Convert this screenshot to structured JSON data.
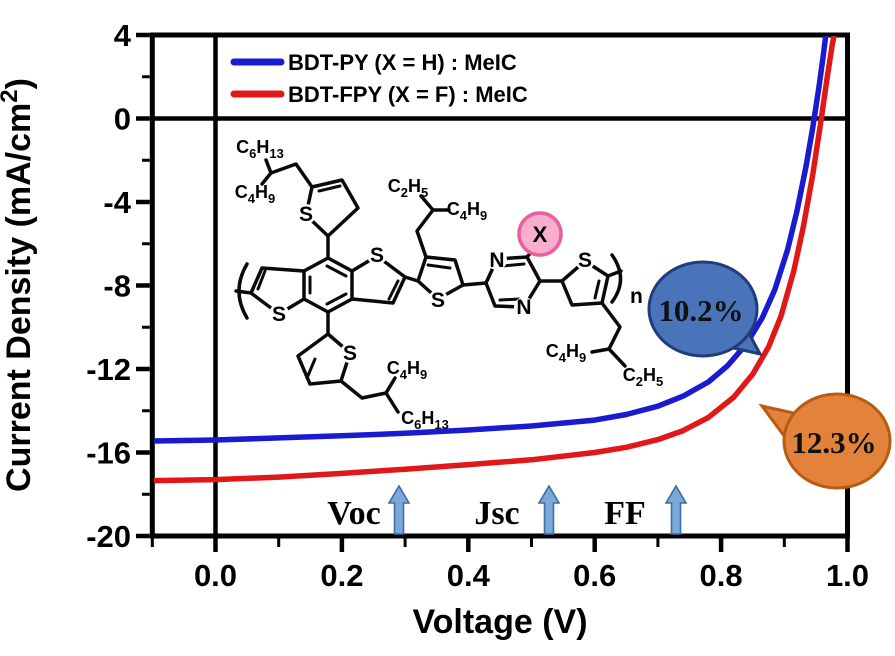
{
  "figure": {
    "xlabel": "Voltage (V)",
    "ylabel_main": "Current Density (mA/cm",
    "ylabel_sup": "2",
    "ylabel_end": ")"
  },
  "legend": {
    "items": [
      {
        "label": "BDT-PY (X = H) : MeIC",
        "color": "#1a1ad0"
      },
      {
        "label": "BDT-FPY (X = F) : MeIC",
        "color": "#e01818"
      }
    ]
  },
  "annotations": {
    "items": [
      {
        "label": "Voc"
      },
      {
        "label": "Jsc"
      },
      {
        "label": "FF"
      }
    ],
    "text_color": "#b00808",
    "arrow_fill": "#7aa8d8",
    "arrow_stroke": "#3f6ea6"
  },
  "callouts": [
    {
      "text": "10.2%",
      "fill": "#4a74ba",
      "stroke": "#1f3d7a"
    },
    {
      "text": "12.3%",
      "fill": "#e2823b",
      "stroke": "#b85c12"
    }
  ],
  "structure": {
    "labels": {
      "top_left_1": "C6H13",
      "top_left_2": "C4H9",
      "mid_top_1": "C2H5",
      "mid_top_2": "C4H9",
      "bottom_left_1": "C4H9",
      "bottom_left_2": "C6H13",
      "bottom_right_1": "C4H9",
      "bottom_right_2": "C2H5",
      "x_substituent": "X",
      "repeat_subscript": "n",
      "sulfur": "S",
      "nitrogen": "N"
    },
    "x_circle_fill": "#f8aecd",
    "x_circle_stroke": "#ea5f9e"
  },
  "chart_data": {
    "type": "line",
    "title": "",
    "xlabel": "Voltage (V)",
    "ylabel": "Current Density (mA/cm^2)",
    "xlim": [
      -0.1,
      1.0
    ],
    "ylim": [
      -20,
      4
    ],
    "x_minor_step": 0.1,
    "y_minor_step": 2,
    "grid": false,
    "legend_position": "top-left-inside",
    "x_ticks": [
      {
        "v": 0.0,
        "label": "0.0"
      },
      {
        "v": 0.2,
        "label": "0.2"
      },
      {
        "v": 0.4,
        "label": "0.4"
      },
      {
        "v": 0.6,
        "label": "0.6"
      },
      {
        "v": 0.8,
        "label": "0.8"
      },
      {
        "v": 1.0,
        "label": "1.0"
      }
    ],
    "y_ticks": [
      {
        "v": 4,
        "label": "4"
      },
      {
        "v": 0,
        "label": "0"
      },
      {
        "v": -4,
        "label": "-4"
      },
      {
        "v": -8,
        "label": "-8"
      },
      {
        "v": -12,
        "label": "-12"
      },
      {
        "v": -16,
        "label": "-16"
      },
      {
        "v": -20,
        "label": "-20"
      }
    ],
    "series": [
      {
        "name": "BDT-PY (X = H) : MeIC",
        "color": "#1a1ad0",
        "pce_label": "10.2%",
        "points": [
          [
            -0.1,
            -15.45
          ],
          [
            0.0,
            -15.4
          ],
          [
            0.1,
            -15.3
          ],
          [
            0.2,
            -15.2
          ],
          [
            0.3,
            -15.08
          ],
          [
            0.4,
            -14.92
          ],
          [
            0.5,
            -14.73
          ],
          [
            0.6,
            -14.45
          ],
          [
            0.65,
            -14.18
          ],
          [
            0.7,
            -13.78
          ],
          [
            0.74,
            -13.3
          ],
          [
            0.78,
            -12.62
          ],
          [
            0.81,
            -11.85
          ],
          [
            0.84,
            -10.8
          ],
          [
            0.865,
            -9.55
          ],
          [
            0.885,
            -8.2
          ],
          [
            0.905,
            -6.3
          ],
          [
            0.92,
            -4.45
          ],
          [
            0.935,
            -2.2
          ],
          [
            0.945,
            -0.45
          ],
          [
            0.955,
            1.55
          ],
          [
            0.962,
            3.1
          ],
          [
            0.967,
            4.3
          ]
        ]
      },
      {
        "name": "BDT-FPY (X = F) : MeIC",
        "color": "#e01818",
        "pce_label": "12.3%",
        "points": [
          [
            -0.1,
            -17.35
          ],
          [
            0.0,
            -17.3
          ],
          [
            0.1,
            -17.18
          ],
          [
            0.2,
            -17.0
          ],
          [
            0.3,
            -16.8
          ],
          [
            0.4,
            -16.58
          ],
          [
            0.5,
            -16.35
          ],
          [
            0.6,
            -16.0
          ],
          [
            0.65,
            -15.75
          ],
          [
            0.7,
            -15.38
          ],
          [
            0.74,
            -14.95
          ],
          [
            0.78,
            -14.32
          ],
          [
            0.82,
            -13.35
          ],
          [
            0.85,
            -12.25
          ],
          [
            0.875,
            -10.95
          ],
          [
            0.895,
            -9.45
          ],
          [
            0.915,
            -7.3
          ],
          [
            0.93,
            -5.2
          ],
          [
            0.945,
            -2.7
          ],
          [
            0.958,
            -0.1
          ],
          [
            0.968,
            2.0
          ],
          [
            0.976,
            3.55
          ],
          [
            0.981,
            4.3
          ]
        ]
      }
    ]
  }
}
